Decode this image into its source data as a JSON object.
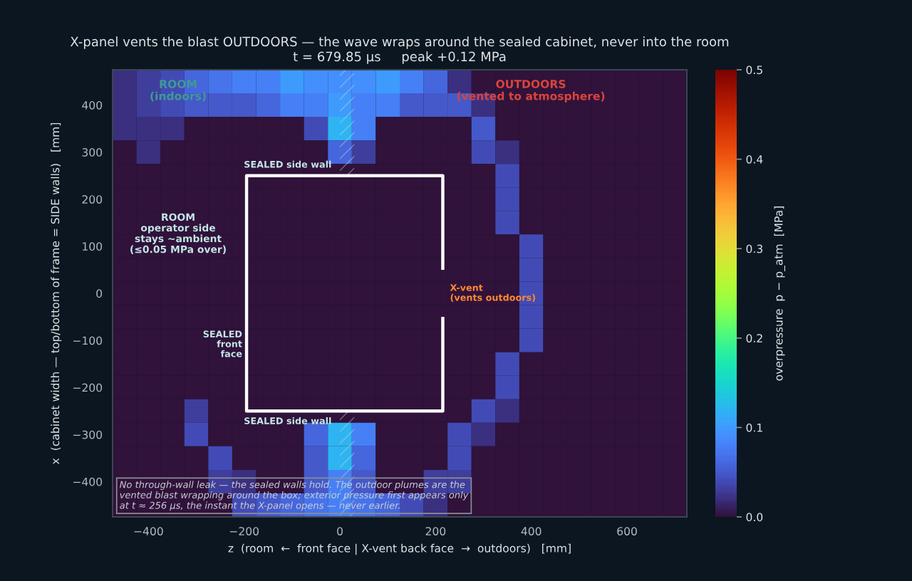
{
  "chart_data": {
    "type": "heatmap",
    "title": "X-panel vents the blast OUTDOORS — the wave wraps around the sealed cabinet, never into the room",
    "subtitle": "t = 679.85 µs     peak +0.12 MPa",
    "xlabel": "z  (room  ←  front face | X-vent back face  →  outdoors)   [mm]",
    "ylabel": "x  (cabinet width — top/bottom of frame = SIDE walls)   [mm]",
    "clabel": "overpressure  p − p_atm  [MPa]",
    "categories": [
      null,
      "−400",
      null,
      null,
      null,
      "−200",
      null,
      null,
      null,
      "0",
      null,
      null,
      null,
      "200",
      null,
      null,
      null,
      "400",
      null,
      null,
      null,
      "600",
      null,
      null
    ],
    "y_categories": [
      null,
      "400",
      null,
      "300",
      null,
      "200",
      null,
      "100",
      null,
      "0",
      null,
      "−100",
      null,
      "−200",
      null,
      "−300",
      null,
      "−400",
      null
    ],
    "cells": [
      [
        0.02,
        0.03,
        0.04,
        0.06,
        0.07,
        0.08,
        0.08,
        0.1,
        0.09,
        0.09,
        0.09,
        0.1,
        0.08,
        0.06,
        0.02,
        0,
        0,
        0,
        0,
        0,
        0,
        0,
        0,
        0
      ],
      [
        0.02,
        0.03,
        0.04,
        0.05,
        0.05,
        0.05,
        0.06,
        0.08,
        0.08,
        0.1,
        0.08,
        0.08,
        0.05,
        0.05,
        0.05,
        0.02,
        0,
        0,
        0,
        0,
        0,
        0,
        0,
        0
      ],
      [
        0.02,
        0.02,
        0.02,
        0,
        0,
        0,
        0,
        0,
        0.04,
        0.12,
        0.08,
        0,
        0,
        0,
        0,
        0.05,
        0,
        0,
        0,
        0,
        0,
        0,
        0,
        0
      ],
      [
        0,
        0.02,
        0,
        0,
        0,
        0,
        0,
        0,
        0,
        0.06,
        0.03,
        0,
        0,
        0,
        0,
        0.04,
        0.02,
        0,
        0,
        0,
        0,
        0,
        0,
        0
      ],
      [
        0,
        0,
        0,
        0,
        0,
        0,
        0,
        0,
        0,
        0,
        0,
        0,
        0,
        0,
        0,
        0,
        0.04,
        0,
        0,
        0,
        0,
        0,
        0,
        0
      ],
      [
        0,
        0,
        0,
        0,
        0,
        0,
        0,
        0,
        0,
        0,
        0,
        0,
        0,
        0,
        0,
        0,
        0.04,
        0,
        0,
        0,
        0,
        0,
        0,
        0
      ],
      [
        0,
        0,
        0,
        0,
        0,
        0,
        0,
        0,
        0,
        0,
        0,
        0,
        0,
        0,
        0,
        0,
        0.04,
        0,
        0,
        0,
        0,
        0,
        0,
        0
      ],
      [
        0,
        0,
        0,
        0,
        0,
        0,
        0,
        0,
        0,
        0,
        0,
        0,
        0,
        0,
        0,
        0,
        0,
        0.04,
        0,
        0,
        0,
        0,
        0,
        0
      ],
      [
        0,
        0,
        0,
        0,
        0,
        0,
        0,
        0,
        0,
        0,
        0,
        0,
        0,
        0,
        0,
        0,
        0,
        0.04,
        0,
        0,
        0,
        0,
        0,
        0
      ],
      [
        0,
        0,
        0,
        0,
        0,
        0,
        0,
        0,
        0,
        0,
        0,
        0,
        0,
        0,
        0,
        0,
        0,
        0.04,
        0,
        0,
        0,
        0,
        0,
        0
      ],
      [
        0,
        0,
        0,
        0,
        0,
        0,
        0,
        0,
        0,
        0,
        0,
        0,
        0,
        0,
        0,
        0,
        0,
        0.04,
        0,
        0,
        0,
        0,
        0,
        0
      ],
      [
        0,
        0,
        0,
        0,
        0,
        0,
        0,
        0,
        0,
        0,
        0,
        0,
        0,
        0,
        0,
        0,
        0,
        0.04,
        0,
        0,
        0,
        0,
        0,
        0
      ],
      [
        0,
        0,
        0,
        0,
        0,
        0,
        0,
        0,
        0,
        0,
        0,
        0,
        0,
        0,
        0,
        0,
        0.04,
        0,
        0,
        0,
        0,
        0,
        0,
        0
      ],
      [
        0,
        0,
        0,
        0,
        0,
        0,
        0,
        0,
        0,
        0,
        0,
        0,
        0,
        0,
        0,
        0,
        0.04,
        0,
        0,
        0,
        0,
        0,
        0,
        0
      ],
      [
        0,
        0,
        0,
        0.03,
        0,
        0,
        0,
        0,
        0,
        0,
        0,
        0,
        0,
        0,
        0,
        0.04,
        0.02,
        0,
        0,
        0,
        0,
        0,
        0,
        0
      ],
      [
        0,
        0,
        0,
        0.04,
        0,
        0,
        0,
        0,
        0.06,
        0.12,
        0.08,
        0,
        0,
        0,
        0.04,
        0.02,
        0,
        0,
        0,
        0,
        0,
        0,
        0,
        0
      ],
      [
        0,
        0,
        0,
        0,
        0.04,
        0,
        0,
        0,
        0.05,
        0.12,
        0.06,
        0,
        0,
        0,
        0.04,
        0,
        0,
        0,
        0,
        0,
        0,
        0,
        0,
        0
      ],
      [
        0,
        0,
        0,
        0,
        0.03,
        0.02,
        0,
        0,
        0.05,
        0.08,
        0.05,
        0,
        0,
        0.03,
        0.03,
        0,
        0,
        0,
        0,
        0,
        0,
        0,
        0,
        0
      ],
      [
        0,
        0,
        0,
        0,
        0,
        0.04,
        0.05,
        0.06,
        0.07,
        0.08,
        0.07,
        0.06,
        0.04,
        0.02,
        0,
        0,
        0,
        0,
        0,
        0,
        0,
        0,
        0,
        0
      ]
    ],
    "clim": [
      0,
      0.5
    ],
    "cticks": [
      {
        "value": 0,
        "label": "0.0"
      },
      0.1,
      0.2,
      0.3,
      0.4,
      0.5
    ],
    "annotations": [
      "ROOM\n(indoors)",
      "OUTDOORS\n(vented to atmosphere)",
      "SEALED side wall",
      "SEALED side wall",
      "ROOM\noperator side\nstays ~ambient\n(≤0.05 MPa over)",
      "SEALED\nfront\nface",
      "X-vent\n(vents outdoors)",
      "No through-wall leak — the sealed walls hold. The outdoor plumes are the\nvented blast wrapping around the box; exterior pressure first appears only\nat t ≈ 256 µs, the instant the X-panel opens — never earlier."
    ],
    "grid": false
  }
}
